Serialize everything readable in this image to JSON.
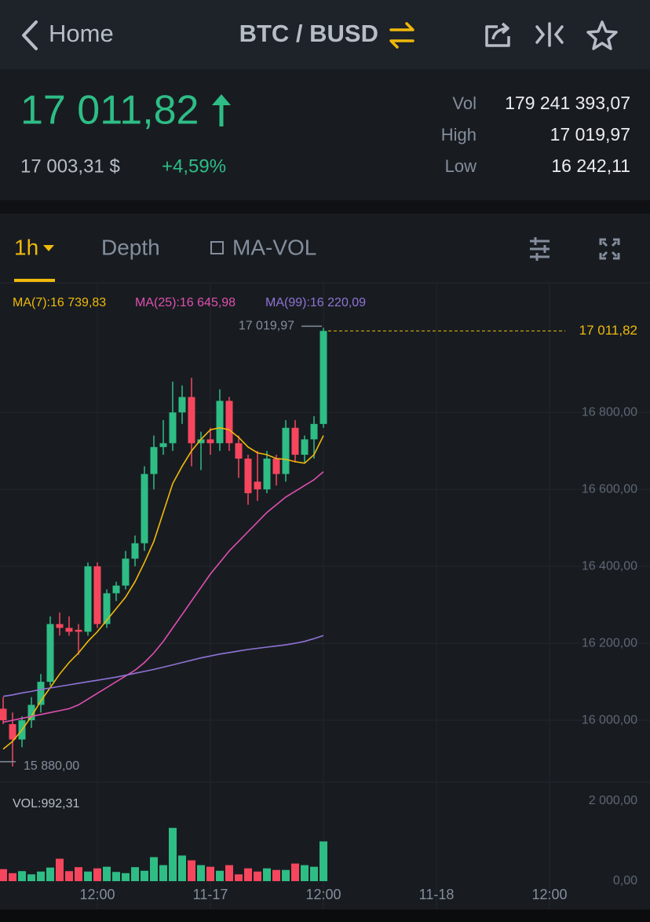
{
  "header": {
    "back": "Home",
    "pair": "BTC / BUSD"
  },
  "ticker": {
    "price": "17 011,82",
    "price_usd": "17 003,31 $",
    "change": "+4,59%",
    "stats": [
      {
        "label": "Vol",
        "value": "179 241 393,07"
      },
      {
        "label": "High",
        "value": "17 019,97"
      },
      {
        "label": "Low",
        "value": "16 242,11"
      }
    ]
  },
  "tabs": [
    "1h",
    "Depth",
    "MA-VOL"
  ],
  "chart_data": {
    "type": "candlestick",
    "categories": [
      null,
      null,
      null,
      null,
      null,
      null,
      null,
      null,
      null,
      null,
      "12:00",
      null,
      null,
      null,
      null,
      null,
      null,
      null,
      null,
      null,
      null,
      null,
      "11-17",
      null,
      null,
      null,
      null,
      null,
      null,
      null,
      null,
      null,
      null,
      null,
      "12:00",
      null,
      null,
      null,
      null,
      null,
      null,
      null,
      null,
      null,
      null,
      null,
      "11-18",
      null,
      null,
      null,
      null,
      null,
      null,
      null,
      null,
      null,
      null,
      null,
      "12:00"
    ],
    "open": [
      16030,
      15990,
      15950,
      16000,
      16040,
      16100,
      16250,
      16240,
      16235,
      16230,
      16400,
      16250,
      16330,
      16350,
      16420,
      16460,
      16640,
      16710,
      16720,
      16800,
      16840,
      16720,
      16730,
      16720,
      16830,
      16720,
      16680,
      16620,
      16600,
      16680,
      16640,
      16760,
      16690,
      16730,
      16770,
      null,
      null,
      null,
      null,
      null,
      null,
      null,
      null,
      null,
      null,
      null,
      null,
      null,
      null,
      null,
      null,
      null,
      null,
      null,
      null,
      null,
      null,
      null,
      null
    ],
    "high": [
      16060,
      16020,
      16010,
      16060,
      16120,
      16270,
      16280,
      16270,
      16250,
      16410,
      16410,
      16340,
      16360,
      16440,
      16480,
      16660,
      16740,
      16780,
      16880,
      16870,
      16890,
      16750,
      16760,
      16860,
      16840,
      16740,
      16690,
      16700,
      16700,
      16690,
      16780,
      16780,
      16740,
      16790,
      17019.97,
      null,
      null,
      null,
      null,
      null,
      null,
      null,
      null,
      null,
      null,
      null,
      null,
      null,
      null,
      null,
      null,
      null,
      null,
      null,
      null,
      null,
      null,
      null,
      null
    ],
    "low": [
      15990,
      15880,
      15930,
      15980,
      16020,
      16090,
      16220,
      16220,
      16170,
      16220,
      16240,
      16240,
      16310,
      16340,
      16400,
      16440,
      16600,
      16690,
      16700,
      16770,
      16660,
      16650,
      16690,
      16700,
      16700,
      16630,
      16560,
      16570,
      16590,
      16610,
      16620,
      16670,
      16670,
      16680,
      16760,
      null,
      null,
      null,
      null,
      null,
      null,
      null,
      null,
      null,
      null,
      null,
      null,
      null,
      null,
      null,
      null,
      null,
      null,
      null,
      null,
      null,
      null,
      null,
      null
    ],
    "close": [
      16000,
      15950,
      16000,
      16040,
      16100,
      16250,
      16240,
      16230,
      16230,
      16400,
      16250,
      16330,
      16350,
      16420,
      16460,
      16640,
      16710,
      16720,
      16800,
      16840,
      16720,
      16730,
      16720,
      16830,
      16720,
      16680,
      16590,
      16600,
      16680,
      16640,
      16760,
      16690,
      16730,
      16770,
      17011.82,
      null,
      null,
      null,
      null,
      null,
      null,
      null,
      null,
      null,
      null,
      null,
      null,
      null,
      null,
      null,
      null,
      null,
      null,
      null,
      null,
      null,
      null,
      null,
      null
    ],
    "up_color": "#2ebd85",
    "down_color": "#f6465d",
    "ylim": [
      15839,
      17035
    ],
    "yticks": [
      {
        "value": 16000,
        "label": "16 000,00"
      },
      {
        "value": 16200,
        "label": "16 200,00"
      },
      {
        "value": 16400,
        "label": "16 400,00"
      },
      {
        "value": 16600,
        "label": "16 600,00"
      },
      {
        "value": 16800,
        "label": "16 800,00"
      }
    ],
    "grid": true,
    "last_price": {
      "value": 17011.82,
      "label": "17 011,82"
    },
    "high_marker": {
      "value": 17019.97,
      "label": "17 019,97"
    },
    "low_marker": {
      "value": 15880,
      "label": "15 880,00"
    },
    "series": [
      {
        "name": "MA(7):16 739,83",
        "color": "#f0b90b",
        "values": [
          15925,
          15945,
          15975,
          16010,
          16050,
          16085,
          16120,
          16150,
          16175,
          16205,
          16230,
          16260,
          16290,
          16320,
          16360,
          16410,
          16465,
          16540,
          16615,
          16660,
          16700,
          16730,
          16755,
          16760,
          16755,
          16735,
          16710,
          16695,
          16690,
          16680,
          16678,
          16672,
          16668,
          16690,
          16739.83,
          null,
          null,
          null,
          null,
          null,
          null,
          null,
          null,
          null,
          null,
          null,
          null,
          null,
          null,
          null,
          null,
          null,
          null,
          null,
          null,
          null,
          null,
          null,
          null
        ]
      },
      {
        "name": "MA(25):16 645,98",
        "color": "#e04fb0",
        "values": [
          15995,
          16000,
          16005,
          16010,
          16015,
          16020,
          16025,
          16030,
          16040,
          16055,
          16070,
          16085,
          16100,
          16115,
          16130,
          16150,
          16175,
          16205,
          16240,
          16275,
          16310,
          16345,
          16380,
          16410,
          16440,
          16465,
          16490,
          16515,
          16540,
          16560,
          16580,
          16595,
          16610,
          16625,
          16645.98,
          null,
          null,
          null,
          null,
          null,
          null,
          null,
          null,
          null,
          null,
          null,
          null,
          null,
          null,
          null,
          null,
          null,
          null,
          null,
          null,
          null,
          null,
          null,
          null
        ]
      },
      {
        "name": "MA(99):16 220,09",
        "color": "#9073d6",
        "values": [
          16062,
          16066,
          16071,
          16075,
          16080,
          16084,
          16088,
          16092,
          16096,
          16100,
          16104,
          16108,
          16112,
          16117,
          16122,
          16127,
          16132,
          16138,
          16144,
          16150,
          16156,
          16162,
          16167,
          16172,
          16176,
          16180,
          16184,
          16187,
          16190,
          16193,
          16196,
          16200,
          16205,
          16212,
          16220.09,
          null,
          null,
          null,
          null,
          null,
          null,
          null,
          null,
          null,
          null,
          null,
          null,
          null,
          null,
          null,
          null,
          null,
          null,
          null,
          null,
          null,
          null,
          null,
          null
        ]
      }
    ],
    "volume": {
      "label": "VOL:992,31",
      "values": [
        300,
        200,
        250,
        170,
        240,
        340,
        560,
        250,
        350,
        240,
        320,
        360,
        230,
        200,
        350,
        260,
        600,
        400,
        1330,
        640,
        520,
        400,
        360,
        260,
        400,
        170,
        320,
        240,
        320,
        280,
        280,
        440,
        400,
        360,
        992.31,
        null,
        null,
        null,
        null,
        null,
        null,
        null,
        null,
        null,
        null,
        null,
        null,
        null,
        null,
        null,
        null,
        null,
        null,
        null,
        null,
        null,
        null,
        null,
        null
      ],
      "ylim": [
        0,
        2000
      ],
      "yticks": [
        {
          "value": 0,
          "label": "0,00"
        },
        {
          "value": 2000,
          "label": "2 000,00"
        }
      ]
    }
  }
}
